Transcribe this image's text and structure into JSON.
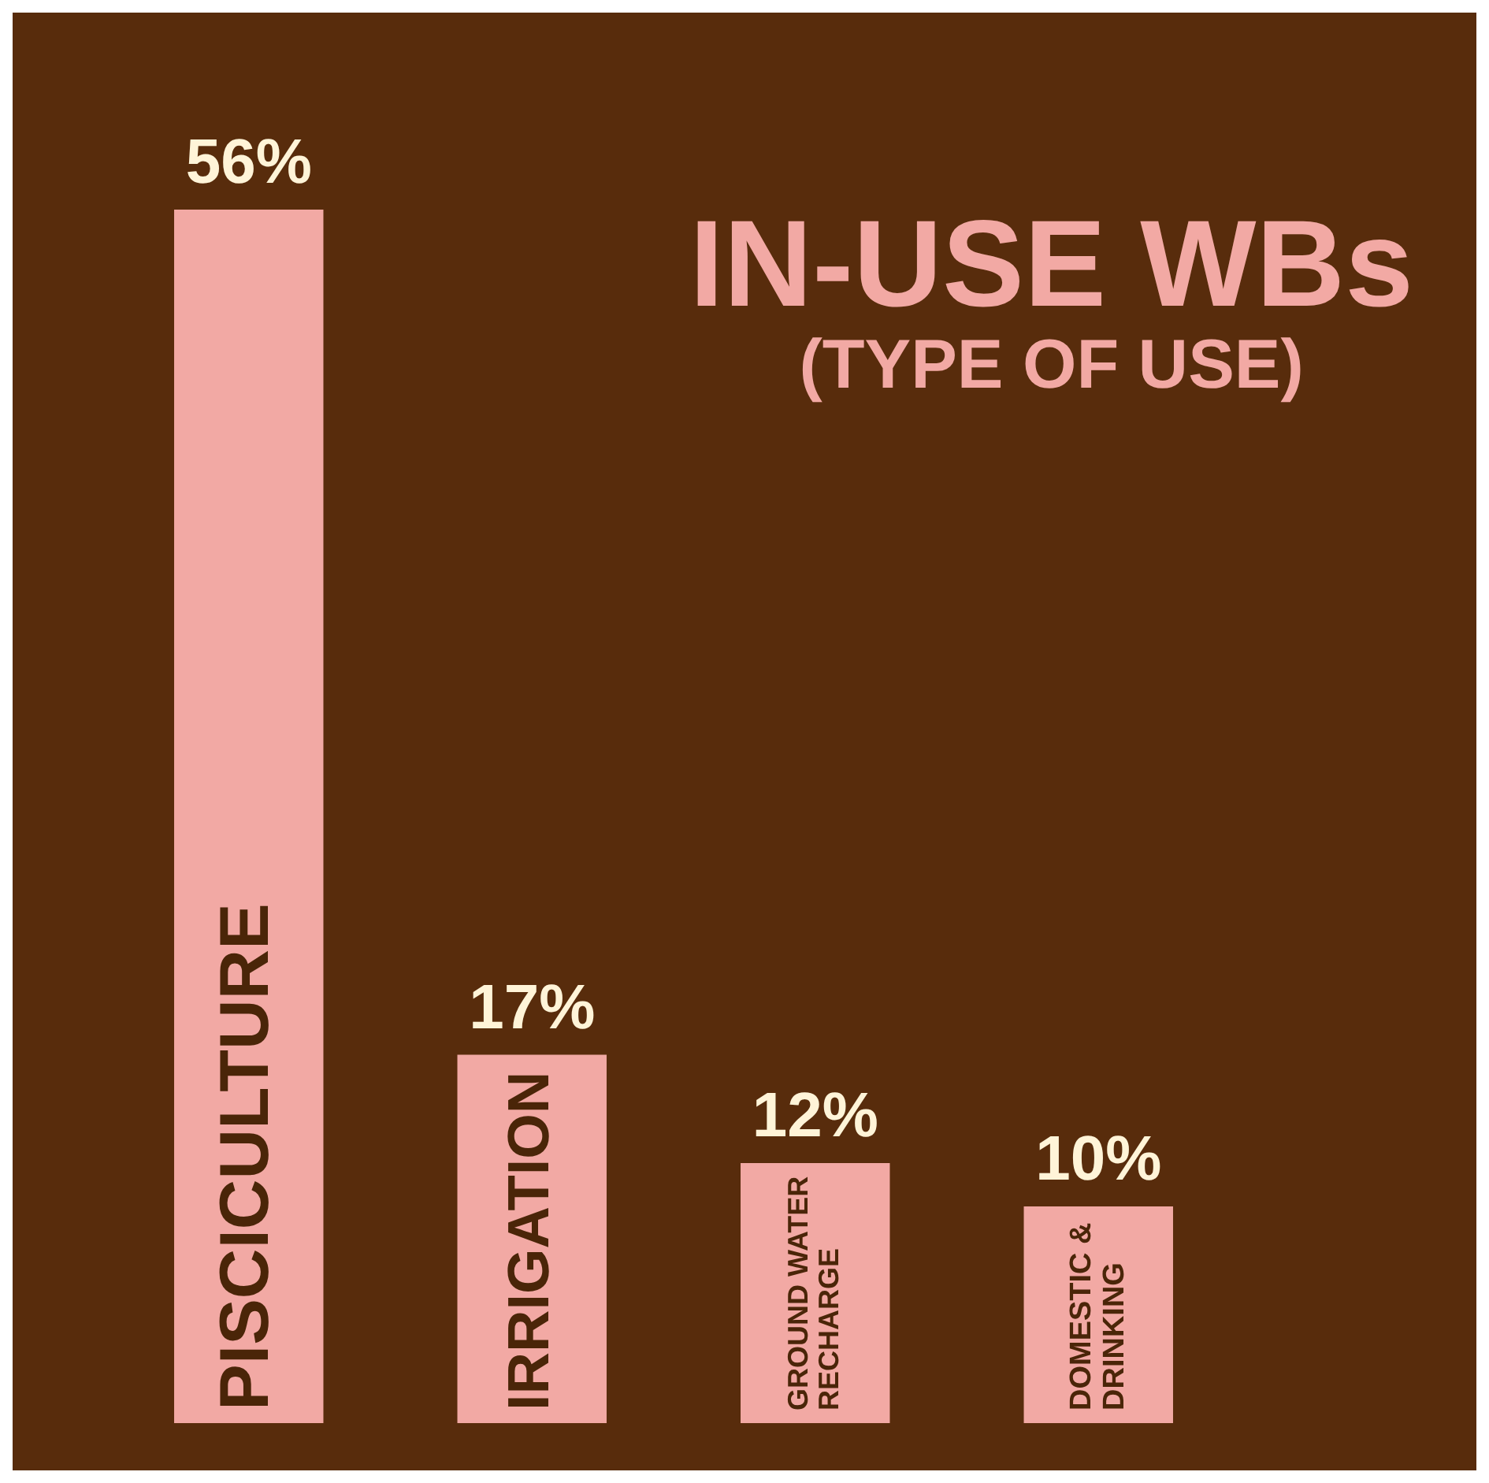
{
  "chart_data": {
    "type": "bar",
    "title": "IN-USE WBs",
    "subtitle": "(TYPE OF USE)",
    "categories": [
      "PISCICULTURE",
      "IRRIGATION",
      "GROUND WATER RECHARGE",
      "DOMESTIC & DRINKING"
    ],
    "values": [
      56,
      17,
      12,
      10
    ],
    "value_labels": [
      "56%",
      "17%",
      "12%",
      "10%"
    ],
    "color": "#f2a9a4"
  }
}
